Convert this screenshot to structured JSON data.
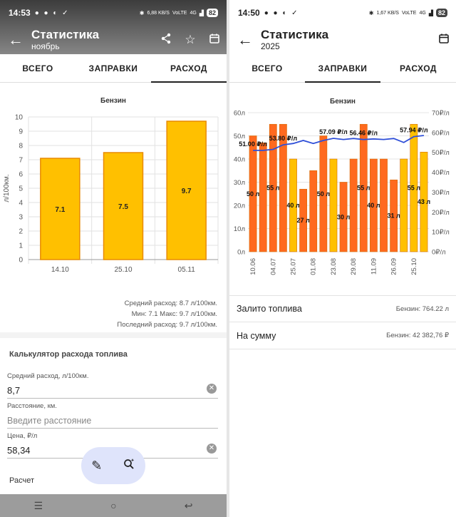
{
  "left": {
    "status": {
      "time": "14:53",
      "net_speed": "6,88 KB/S",
      "volte": "VoLTE",
      "signal": "4G",
      "battery": "82"
    },
    "title": "Статистика",
    "subtitle": "ноябрь",
    "tabs": [
      "ВСЕГО",
      "ЗАПРАВКИ",
      "РАСХОД"
    ],
    "active_tab": 2,
    "chart_data": {
      "type": "bar",
      "title": "Бензин",
      "ylabel": "л/100км.",
      "xlabel": "",
      "categories": [
        "14.10",
        "25.10",
        "05.11"
      ],
      "values": [
        7.1,
        7.5,
        9.7
      ],
      "value_labels": [
        "7.1",
        "7.5",
        "9.7"
      ],
      "ylim": [
        0,
        10
      ],
      "yticks": [
        "0",
        "1",
        "2",
        "3",
        "4",
        "5",
        "6",
        "7",
        "8",
        "9",
        "10"
      ],
      "bar_color": "#FFC000",
      "bar_edge": "#E88A00",
      "grid": true
    },
    "stats": {
      "avg": "Средний расход: 8.7 л/100км.",
      "minmax": "Мин: 7.1 Макс: 9.7 л/100км.",
      "last": "Последний расход: 9.7 л/100км."
    },
    "calculator": {
      "title": "Калькулятор расхода топлива",
      "avg_label": "Средний расход, л/100км.",
      "avg_value": "8,7",
      "distance_label": "Расстояние, км.",
      "distance_placeholder": "Введите расстояние",
      "price_label": "Цена, ₽/л",
      "price_value": "58,34",
      "calc_label": "Расчет"
    }
  },
  "right": {
    "status": {
      "time": "14:50",
      "net_speed": "1,67 KB/S",
      "volte": "VoLTE",
      "signal": "4G",
      "battery": "82"
    },
    "title": "Статистика",
    "subtitle": "2025",
    "tabs": [
      "ВСЕГО",
      "ЗАПРАВКИ",
      "РАСХОД"
    ],
    "active_tab": 1,
    "chart_data": {
      "type": "bar",
      "title": "Бензин",
      "categories": [
        "10.06",
        "",
        "04.07",
        "",
        "25.07",
        "",
        "01.08",
        "",
        "23.08",
        "",
        "29.08",
        "",
        "11.09",
        "",
        "26.09",
        "",
        "25.10",
        ""
      ],
      "values": [
        50,
        47,
        55,
        55,
        40,
        27,
        35,
        50,
        40,
        30,
        40,
        55,
        40,
        40,
        31,
        40,
        55,
        43
      ],
      "bar_colors": [
        "#FF6A1F",
        "#FF6A1F",
        "#FF6A1F",
        "#FF6A1F",
        "#FFC000",
        "#FF6A1F",
        "#FF6A1F",
        "#FF6A1F",
        "#FFC000",
        "#FF6A1F",
        "#FF6A1F",
        "#FF6A1F",
        "#FF6A1F",
        "#FF6A1F",
        "#FF6A1F",
        "#FFC000",
        "#FFC000",
        "#FFC000"
      ],
      "value_labels": [
        {
          "i": 0,
          "text": "50 л"
        },
        {
          "i": 2,
          "text": "55 л"
        },
        {
          "i": 4,
          "text": "40 л"
        },
        {
          "i": 5,
          "text": "27 л"
        },
        {
          "i": 7,
          "text": "50 л"
        },
        {
          "i": 9,
          "text": "30 л"
        },
        {
          "i": 11,
          "text": "55 л"
        },
        {
          "i": 12,
          "text": "40 л"
        },
        {
          "i": 14,
          "text": "31 л"
        },
        {
          "i": 16,
          "text": "55 л"
        },
        {
          "i": 17,
          "text": "43 л"
        }
      ],
      "ylim": [
        0,
        60
      ],
      "yticks_left": [
        "0л",
        "10л",
        "20л",
        "30л",
        "40л",
        "50л",
        "60л"
      ],
      "price_series": {
        "color": "#2F4FD8",
        "values": [
          51.0,
          51.0,
          51.5,
          53.8,
          54.5,
          56.0,
          54.5,
          56.0,
          57.09,
          56.5,
          57.0,
          56.46,
          56.8,
          56.5,
          57.0,
          55.0,
          57.94,
          58.5
        ]
      },
      "price_labels": [
        {
          "i": 0,
          "text": "51.00 ₽/л"
        },
        {
          "i": 3,
          "text": "53.80 ₽/л"
        },
        {
          "i": 8,
          "text": "57.09 ₽/л"
        },
        {
          "i": 11,
          "text": "56.46 ₽/л"
        },
        {
          "i": 16,
          "text": "57.94 ₽/л"
        }
      ],
      "y2lim": [
        0,
        70
      ],
      "yticks_right": [
        "0₽/л",
        "10₽/л",
        "20₽/л",
        "30₽/л",
        "40₽/л",
        "50₽/л",
        "60₽/л",
        "70₽/л"
      ],
      "grid": true
    },
    "summary": [
      {
        "label": "Залито топлива",
        "value": "Бензин: 764.22 л"
      },
      {
        "label": "На сумму",
        "value": "Бензин: 42 382,76 ₽"
      }
    ]
  }
}
